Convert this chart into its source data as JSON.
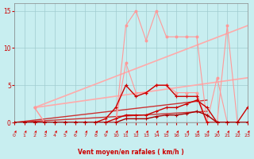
{
  "xlabel": "Vent moyen/en rafales ( km/h )",
  "xlim": [
    0,
    23
  ],
  "ylim": [
    0,
    16
  ],
  "yticks": [
    0,
    5,
    10,
    15
  ],
  "xticks": [
    0,
    1,
    2,
    3,
    4,
    5,
    6,
    7,
    8,
    9,
    10,
    11,
    12,
    13,
    14,
    15,
    16,
    17,
    18,
    19,
    20,
    21,
    22,
    23
  ],
  "background_color": "#c8eef0",
  "grid_color": "#a0ccd0",
  "series": [
    {
      "x": [
        2,
        3,
        4,
        5,
        6,
        7,
        8,
        9,
        10,
        11,
        12,
        13,
        14,
        15,
        16,
        17,
        18,
        19,
        20,
        21,
        22
      ],
      "y": [
        2,
        0,
        0,
        0,
        0,
        0,
        0,
        0,
        0,
        13,
        15,
        11,
        15,
        11.5,
        11.5,
        11.5,
        11.5,
        0,
        0,
        13,
        0
      ],
      "color": "#ff9999",
      "linewidth": 0.8,
      "marker": "o",
      "markersize": 2.0,
      "zorder": 3
    },
    {
      "x": [
        2,
        3,
        4,
        5,
        6,
        7,
        8,
        9,
        10,
        11,
        12,
        13,
        14,
        15,
        16,
        17,
        18,
        19,
        20,
        21,
        22
      ],
      "y": [
        2,
        0,
        0,
        0,
        0,
        0,
        0,
        0,
        0,
        8,
        4,
        4,
        5,
        5,
        4,
        4,
        4,
        0,
        6,
        0,
        0
      ],
      "color": "#ff9999",
      "linewidth": 0.8,
      "marker": "o",
      "markersize": 2.0,
      "zorder": 3
    },
    {
      "x": [
        0,
        1,
        2,
        3,
        4,
        5,
        6,
        7,
        8,
        9,
        10,
        11,
        12,
        13,
        14,
        15,
        16,
        17,
        18,
        19,
        20,
        21,
        22,
        23
      ],
      "y": [
        0,
        0,
        0,
        0,
        0,
        0,
        0,
        0,
        0,
        0.5,
        2,
        5,
        3.5,
        4,
        5,
        5,
        3.5,
        3.5,
        3.5,
        0,
        0,
        0,
        0,
        2
      ],
      "color": "#cc0000",
      "linewidth": 1.0,
      "marker": "+",
      "markersize": 3.5,
      "zorder": 4
    },
    {
      "x": [
        0,
        1,
        2,
        3,
        4,
        5,
        6,
        7,
        8,
        9,
        10,
        11,
        12,
        13,
        14,
        15,
        16,
        17,
        18,
        19,
        20,
        21,
        22,
        23
      ],
      "y": [
        0,
        0,
        0,
        0,
        0,
        0,
        0,
        0,
        0,
        0,
        0.5,
        1,
        1,
        1,
        1.5,
        2,
        2,
        2.5,
        3,
        2,
        0,
        0,
        0,
        0
      ],
      "color": "#cc0000",
      "linewidth": 1.0,
      "marker": "+",
      "markersize": 3.5,
      "zorder": 4
    },
    {
      "x": [
        0,
        1,
        2,
        3,
        4,
        5,
        6,
        7,
        8,
        9,
        10,
        11,
        12,
        13,
        14,
        15,
        16,
        17,
        18,
        19,
        20,
        21,
        22,
        23
      ],
      "y": [
        0,
        0,
        0,
        0,
        0,
        0,
        0,
        0,
        0,
        0,
        0,
        0.5,
        0.5,
        0.5,
        0.8,
        1,
        1,
        1.2,
        1.5,
        1,
        0,
        0,
        0,
        0
      ],
      "color": "#aa0000",
      "linewidth": 1.0,
      "marker": "+",
      "markersize": 3.0,
      "zorder": 4
    },
    {
      "x": [
        2,
        23
      ],
      "y": [
        2,
        13
      ],
      "color": "#ffaaaa",
      "linewidth": 1.2,
      "marker": null,
      "markersize": 0,
      "zorder": 2
    },
    {
      "x": [
        2,
        23
      ],
      "y": [
        2,
        6
      ],
      "color": "#ffaaaa",
      "linewidth": 1.2,
      "marker": null,
      "markersize": 0,
      "zorder": 2
    },
    {
      "x": [
        0,
        19
      ],
      "y": [
        0,
        3
      ],
      "color": "#cc3333",
      "linewidth": 1.0,
      "marker": null,
      "markersize": 0,
      "zorder": 2
    },
    {
      "x": [
        0,
        19
      ],
      "y": [
        0,
        1.5
      ],
      "color": "#cc3333",
      "linewidth": 1.0,
      "marker": null,
      "markersize": 0,
      "zorder": 2
    },
    {
      "x": [
        0,
        23
      ],
      "y": [
        0,
        0
      ],
      "color": "#880000",
      "linewidth": 0.8,
      "marker": null,
      "markersize": 0,
      "zorder": 2
    }
  ],
  "wind_arrows": {
    "color": "#dd0000",
    "x_positions": [
      0,
      1,
      2,
      3,
      4,
      5,
      6,
      7,
      8,
      9,
      10,
      11,
      12,
      13,
      14,
      15,
      16,
      17,
      18,
      19,
      20,
      21,
      22,
      23
    ]
  }
}
